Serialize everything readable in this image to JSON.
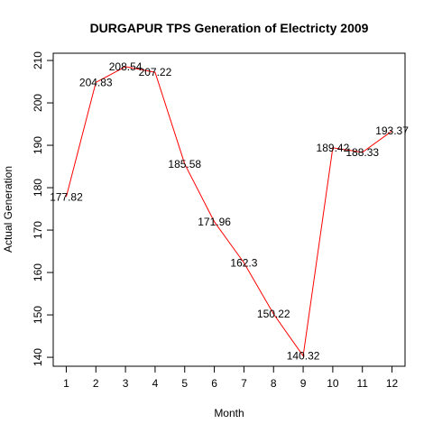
{
  "chart_data": {
    "type": "line",
    "title": "DURGAPUR TPS Generation of Electricty 2009",
    "xlabel": "Month",
    "ylabel": "Actual Generation",
    "x": [
      1,
      2,
      3,
      4,
      5,
      6,
      7,
      8,
      9,
      10,
      11,
      12
    ],
    "x_tick_labels": [
      "1",
      "2",
      "3",
      "4",
      "5",
      "6",
      "7",
      "8",
      "9",
      "10",
      "11",
      "12"
    ],
    "y_tick_labels": [
      "140",
      "150",
      "160",
      "170",
      "180",
      "190",
      "200",
      "210"
    ],
    "y_ticks": [
      140,
      150,
      160,
      170,
      180,
      190,
      200,
      210
    ],
    "xlim": [
      0.56,
      12.44
    ],
    "ylim": [
      137.89,
      211.71
    ],
    "values": [
      177.82,
      204.83,
      208.54,
      207.22,
      185.58,
      171.96,
      162.3,
      150.22,
      140.32,
      189.42,
      188.33,
      193.37
    ],
    "data_labels": [
      "177.82",
      "204.83",
      "208.54",
      "207.22",
      "185.58",
      "171.96",
      "162.3",
      "150.22",
      "140.32",
      "189.42",
      "188.33",
      "193.37"
    ],
    "line_color": "#ff0000",
    "grid": false,
    "legend": "none"
  }
}
